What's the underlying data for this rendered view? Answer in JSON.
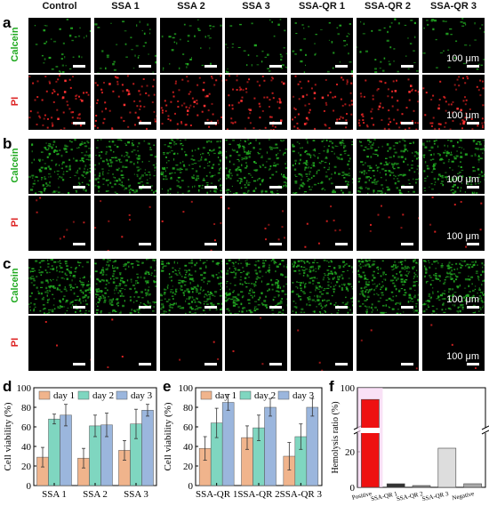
{
  "columns": [
    "Control",
    "SSA 1",
    "SSA 2",
    "SSA 3",
    "SSA-QR 1",
    "SSA-QR 2",
    "SSA-QR 3"
  ],
  "panels": [
    {
      "label": "a",
      "rows": [
        "Calcein",
        "PI"
      ],
      "density": [
        0.15,
        0.25
      ]
    },
    {
      "label": "b",
      "rows": [
        "Calcein",
        "PI"
      ],
      "density": [
        0.7,
        0.03
      ]
    },
    {
      "label": "c",
      "rows": [
        "Calcein",
        "PI"
      ],
      "density": [
        0.9,
        0.01
      ]
    }
  ],
  "scale_bar_label": "100 μm",
  "colors": {
    "calcein": "#22aa22",
    "pi": "#dd2222",
    "day1": "#f0b48c",
    "day2": "#7fd6c0",
    "day3": "#9bb6dd",
    "positive": "#ee1111"
  },
  "chart_data": [
    {
      "panel": "d",
      "type": "bar",
      "categories": [
        "SSA 1",
        "SSA 2",
        "SSA 3"
      ],
      "ylabel": "Cell viability (%)",
      "ylim": [
        0,
        100
      ],
      "yticks": [
        "0",
        "20",
        "40",
        "60",
        "80",
        "100"
      ],
      "series": [
        {
          "name": "day 1",
          "values": [
            29,
            28,
            36
          ],
          "errors": [
            10,
            10,
            10
          ]
        },
        {
          "name": "day 2",
          "values": [
            68,
            61,
            63
          ],
          "errors": [
            5,
            11,
            15
          ]
        },
        {
          "name": "day 3",
          "values": [
            72,
            62,
            77
          ],
          "errors": [
            11,
            12,
            6
          ]
        }
      ]
    },
    {
      "panel": "e",
      "type": "bar",
      "categories": [
        "SSA-QR 1",
        "SSA-QR 2",
        "SSA-QR 3"
      ],
      "ylabel": "Cell viability (%)",
      "ylim": [
        0,
        100
      ],
      "yticks": [
        "0",
        "20",
        "40",
        "60",
        "80",
        "100"
      ],
      "series": [
        {
          "name": "day 1",
          "values": [
            38,
            49,
            30
          ],
          "errors": [
            12,
            12,
            14
          ]
        },
        {
          "name": "day 2",
          "values": [
            64,
            59,
            50
          ],
          "errors": [
            15,
            13,
            13
          ]
        },
        {
          "name": "day 3",
          "values": [
            85,
            80,
            80
          ],
          "errors": [
            8,
            9,
            9
          ]
        }
      ]
    },
    {
      "panel": "f",
      "type": "bar",
      "categories": [
        "Positive",
        "SSA-QR 1",
        "SSA-QR 2",
        "SSA-QR 3",
        "Negative"
      ],
      "ylabel": "Hemolysis ratio (%)",
      "yticks": [
        "0",
        "20",
        "100"
      ],
      "axis_break": true,
      "values": [
        97,
        2,
        1,
        22,
        2
      ]
    }
  ]
}
